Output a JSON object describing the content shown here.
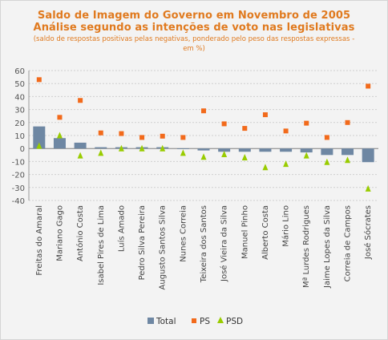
{
  "chart_data": {
    "type": "bar",
    "title": "Saldo de Imagem do Governo em Novembro de 2005",
    "subtitle_line1": "Análise segundo as intenções de voto nas legislativas",
    "subtitle_line2": "(saldo de respostas positivas pelas negativas, ponderado pelo peso das respostas expressas - em %)",
    "xlabel": "",
    "ylabel": "",
    "ylim": [
      -40,
      60
    ],
    "yticks": [
      -40,
      -30,
      -20,
      -10,
      0,
      10,
      20,
      30,
      40,
      50,
      60
    ],
    "grid": true,
    "legend_position": "bottom",
    "categories": [
      "Freitas do Amaral",
      "Mariano Gago",
      "António Costa",
      "Isabel Pires de Lima",
      "Luís Amado",
      "Pedro Silva Pereira",
      "Augusto Santos Silva",
      "Nunes Correia",
      "Teixeira dos Santos",
      "José Vieira da Silva",
      "Manuel Pinho",
      "Alberto Costa",
      "Mário Lino",
      "Mª Lurdes Rodrigues",
      "Jaime Lopes da Silva",
      "Correia de Campos",
      "José Sócrates"
    ],
    "series": [
      {
        "name": "Total",
        "kind": "bar",
        "color": "#6e87a3",
        "values": [
          17,
          8,
          4.5,
          1,
          1,
          1,
          1,
          -0.5,
          -1.5,
          -2.5,
          -2.5,
          -2.5,
          -2.5,
          -3,
          -5,
          -5,
          -10.5
        ]
      },
      {
        "name": "PS",
        "kind": "square",
        "color": "#f26a1b",
        "values": [
          53,
          24,
          37,
          12,
          11.5,
          8.5,
          9.5,
          8.5,
          29,
          19,
          15.5,
          26,
          13.5,
          19.5,
          8.5,
          20,
          48
        ]
      },
      {
        "name": "PSD",
        "kind": "triangle",
        "color": "#99cc00",
        "values": [
          2,
          10,
          -5.5,
          -3.5,
          0,
          0,
          0,
          -3.5,
          -6.5,
          -4.5,
          -7,
          -14.5,
          -12,
          -5.5,
          -10.5,
          -9,
          -31
        ]
      }
    ]
  }
}
